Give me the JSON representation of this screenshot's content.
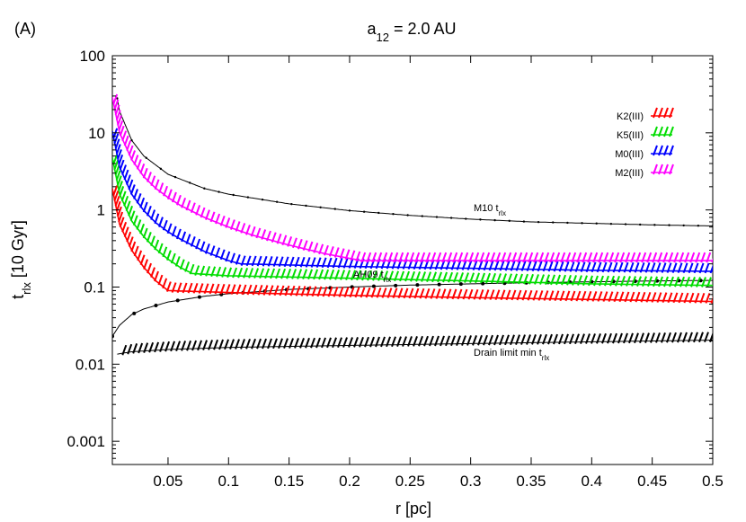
{
  "chart_data": {
    "type": "line",
    "panel_label": "(A)",
    "title_main": "a",
    "title_sub": "12",
    "title_rest": " =  2.0 AU",
    "xlabel": "r [pc]",
    "ylabel_main": "t",
    "ylabel_sub": "rlx",
    "ylabel_rest": " [10 Gyr]",
    "xlim": [
      0.004,
      0.5
    ],
    "ylim": [
      0.0005,
      100
    ],
    "yscale": "log",
    "x_ticks": [
      0.05,
      0.1,
      0.15,
      0.2,
      0.25,
      0.3,
      0.35,
      0.4,
      0.45,
      0.5
    ],
    "x_tick_labels": [
      "0.05",
      "0.1",
      "0.15",
      "0.2",
      "0.25",
      "0.3",
      "0.35",
      "0.4",
      "0.45",
      "0.5"
    ],
    "y_ticks": [
      0.001,
      0.01,
      0.1,
      1,
      10,
      100
    ],
    "y_tick_labels": [
      "0.001",
      "0.01",
      "0.1",
      "1",
      "10",
      "100"
    ],
    "legend_position": "top-right",
    "series": [
      {
        "name": "K2(III)",
        "color": "#ff0000",
        "style": "hatched-lower-limit",
        "x": [
          0.004,
          0.01,
          0.02,
          0.03,
          0.04,
          0.05,
          0.1,
          0.2,
          0.3,
          0.4,
          0.5
        ],
        "y": [
          1.9,
          0.65,
          0.3,
          0.18,
          0.12,
          0.09,
          0.085,
          0.078,
          0.073,
          0.069,
          0.065
        ]
      },
      {
        "name": "K5(III)",
        "color": "#00dd00",
        "style": "hatched-lower-limit",
        "x": [
          0.004,
          0.01,
          0.02,
          0.03,
          0.04,
          0.05,
          0.06,
          0.07,
          0.1,
          0.2,
          0.3,
          0.4,
          0.5
        ],
        "y": [
          4.8,
          1.6,
          0.72,
          0.45,
          0.31,
          0.23,
          0.18,
          0.15,
          0.14,
          0.13,
          0.12,
          0.11,
          0.105
        ]
      },
      {
        "name": "M0(III)",
        "color": "#0000ff",
        "style": "hatched-lower-limit",
        "x": [
          0.004,
          0.01,
          0.02,
          0.03,
          0.04,
          0.05,
          0.06,
          0.08,
          0.1,
          0.11,
          0.2,
          0.3,
          0.4,
          0.5
        ],
        "y": [
          10.5,
          3.6,
          1.6,
          0.98,
          0.68,
          0.52,
          0.42,
          0.29,
          0.22,
          0.2,
          0.185,
          0.175,
          0.165,
          0.16
        ]
      },
      {
        "name": "M2(III)",
        "color": "#ff00ff",
        "style": "hatched-lower-limit",
        "x": [
          0.004,
          0.01,
          0.02,
          0.03,
          0.04,
          0.05,
          0.06,
          0.08,
          0.1,
          0.12,
          0.15,
          0.18,
          0.21,
          0.3,
          0.4,
          0.5
        ],
        "y": [
          29,
          10,
          4.5,
          2.7,
          1.9,
          1.45,
          1.15,
          0.8,
          0.6,
          0.47,
          0.35,
          0.27,
          0.22,
          0.22,
          0.22,
          0.22
        ]
      }
    ],
    "reference_curves": [
      {
        "label_main": "M10 t",
        "label_sub": "rlx",
        "color": "#000000",
        "style": "line-with-small-points",
        "x": [
          0.008,
          0.01,
          0.02,
          0.03,
          0.05,
          0.08,
          0.1,
          0.15,
          0.2,
          0.25,
          0.3,
          0.35,
          0.4,
          0.45,
          0.5
        ],
        "y": [
          28,
          19,
          8,
          5,
          2.9,
          1.9,
          1.6,
          1.2,
          0.98,
          0.85,
          0.76,
          0.7,
          0.67,
          0.64,
          0.62
        ]
      },
      {
        "label_main": "AH09 t",
        "label_sub": "rlx",
        "color": "#000000",
        "style": "line-with-points",
        "x": [
          0.004,
          0.01,
          0.02,
          0.03,
          0.05,
          0.08,
          0.1,
          0.15,
          0.2,
          0.25,
          0.3,
          0.35,
          0.4,
          0.45,
          0.5
        ],
        "y": [
          0.023,
          0.032,
          0.044,
          0.052,
          0.064,
          0.076,
          0.082,
          0.093,
          0.1,
          0.106,
          0.11,
          0.114,
          0.117,
          0.12,
          0.122
        ]
      },
      {
        "label_main": "Drain limit min t",
        "label_sub": "rlx",
        "color": "#000000",
        "style": "hatched-lower-limit",
        "x": [
          0.008,
          0.02,
          0.05,
          0.1,
          0.15,
          0.2,
          0.25,
          0.3,
          0.35,
          0.4,
          0.45,
          0.5
        ],
        "y": [
          0.0135,
          0.0145,
          0.0155,
          0.0165,
          0.017,
          0.0175,
          0.018,
          0.0185,
          0.019,
          0.0195,
          0.02,
          0.0205
        ]
      }
    ]
  }
}
